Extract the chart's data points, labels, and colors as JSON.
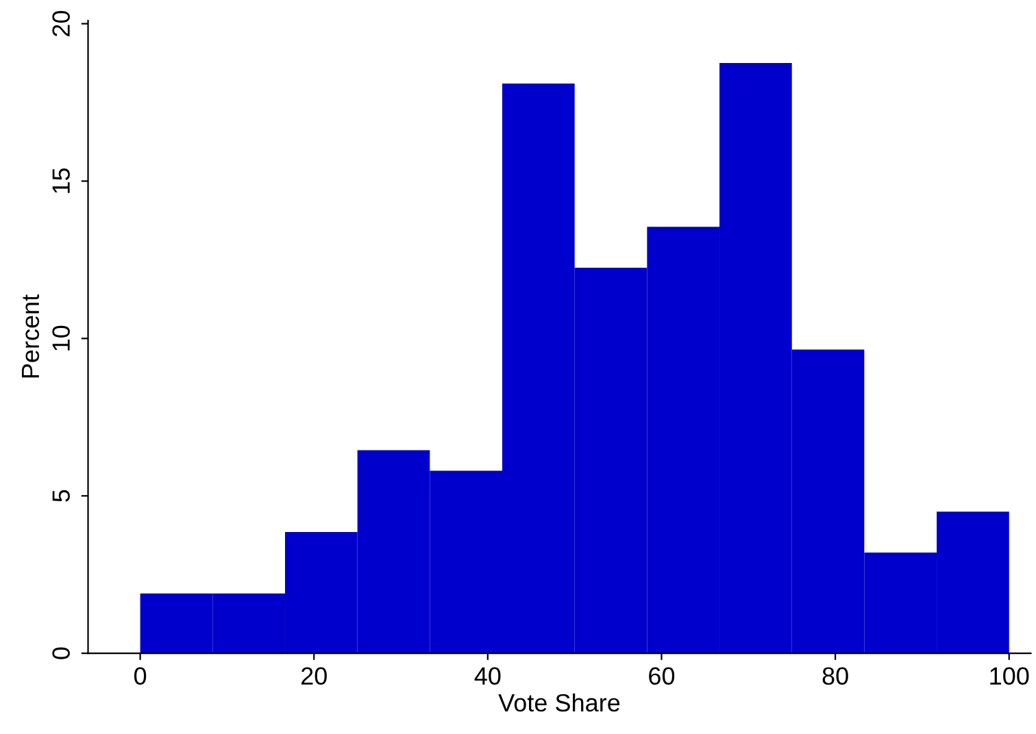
{
  "chart_data": {
    "type": "histogram",
    "xlabel": "Vote Share",
    "ylabel": "Percent",
    "color": "#0000cc",
    "bins": [
      0,
      8.333,
      16.667,
      25,
      33.333,
      41.667,
      50,
      58.333,
      66.667,
      75,
      83.333,
      91.667,
      100
    ],
    "values": [
      1.9,
      1.9,
      3.85,
      6.45,
      5.8,
      18.1,
      12.25,
      13.55,
      18.75,
      9.65,
      3.2,
      4.5
    ],
    "xlim": [
      -6,
      102.5
    ],
    "xticks": [
      0,
      20,
      40,
      60,
      80,
      100
    ],
    "ylim": [
      0,
      20.1
    ],
    "yticks": [
      0,
      5,
      10,
      15,
      20
    ],
    "grid": false
  }
}
